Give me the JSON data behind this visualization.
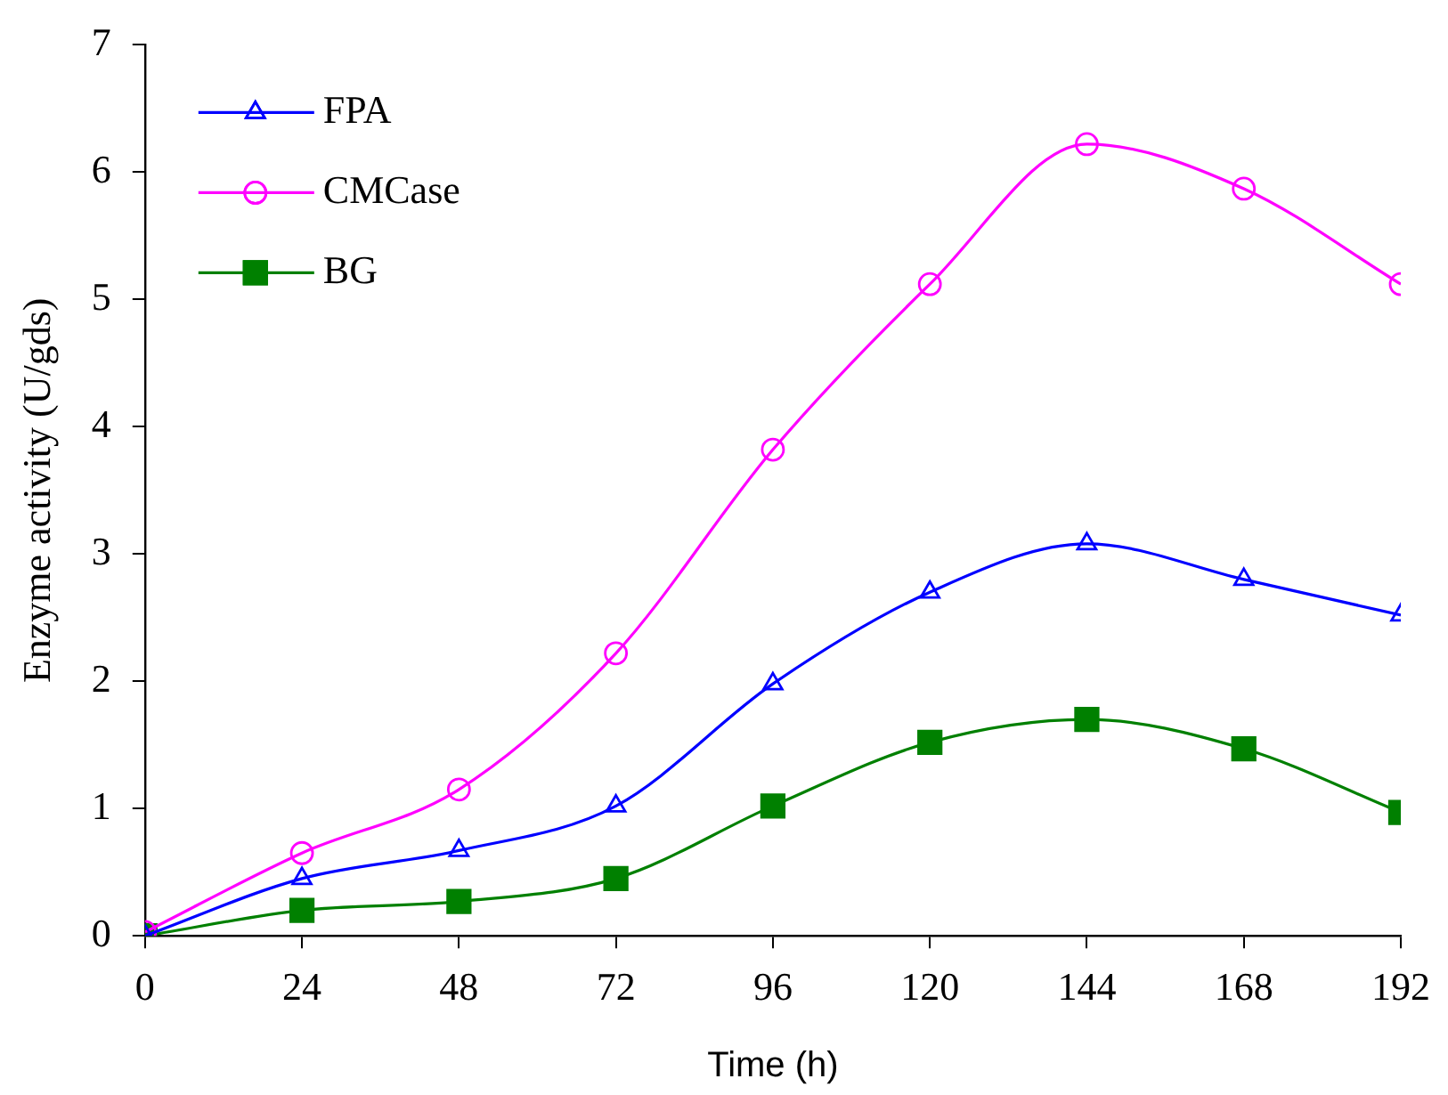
{
  "chart_data": {
    "type": "line",
    "xlabel": "Time (h)",
    "ylabel": "Enzyme activity (U/gds)",
    "x": [
      0,
      24,
      48,
      72,
      96,
      120,
      144,
      168,
      192
    ],
    "xlim": [
      0,
      192
    ],
    "xticks": [
      0,
      24,
      48,
      72,
      96,
      120,
      144,
      168,
      192
    ],
    "ylim": [
      0,
      7
    ],
    "yticks": [
      0,
      1,
      2,
      3,
      4,
      5,
      6,
      7
    ],
    "grid": false,
    "legend": "top left",
    "series": [
      {
        "name": "FPA",
        "color": "#0000ff",
        "marker": "triangle",
        "values": [
          0,
          0.45,
          0.67,
          1.02,
          1.98,
          2.7,
          3.08,
          2.8,
          2.52
        ]
      },
      {
        "name": "CMCase",
        "color": "#ff00ff",
        "marker": "circle",
        "values": [
          0.03,
          0.65,
          1.15,
          2.22,
          3.82,
          5.12,
          6.22,
          5.87,
          5.12
        ]
      },
      {
        "name": "BG",
        "color": "#008000",
        "marker": "square",
        "values": [
          0,
          0.2,
          0.27,
          0.45,
          1.02,
          1.52,
          1.7,
          1.47,
          0.97
        ]
      }
    ]
  }
}
